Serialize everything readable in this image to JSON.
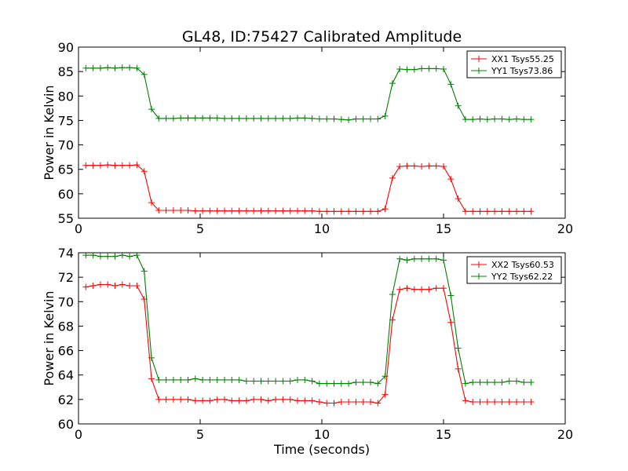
{
  "title": "GL48, ID:75427 Calibrated Amplitude",
  "xlabel": "Time (seconds)",
  "chart_data": [
    {
      "type": "line",
      "title": "GL48, ID:75427 Calibrated Amplitude",
      "xlabel": "",
      "ylabel": "Power in Kelvin",
      "xlim": [
        0,
        20
      ],
      "ylim": [
        55,
        90
      ],
      "xticks": [
        "0",
        "5",
        "10",
        "15",
        "20"
      ],
      "yticks": [
        "55",
        "60",
        "65",
        "70",
        "75",
        "80",
        "85",
        "90"
      ],
      "grid": false,
      "legend_position": "top-right",
      "series": [
        {
          "name": "XX1 Tsys55.25",
          "color": "#ff0000",
          "x": [
            0.3,
            0.6,
            0.9,
            1.2,
            1.5,
            1.8,
            2.1,
            2.4,
            2.7,
            3.0,
            3.3,
            3.6,
            3.9,
            4.2,
            4.5,
            4.8,
            5.1,
            5.4,
            5.7,
            6.0,
            6.3,
            6.6,
            6.9,
            7.2,
            7.5,
            7.8,
            8.1,
            8.4,
            8.7,
            9.0,
            9.3,
            9.6,
            9.9,
            10.2,
            10.5,
            10.8,
            11.1,
            11.4,
            11.7,
            12.0,
            12.3,
            12.6,
            12.9,
            13.2,
            13.5,
            13.8,
            14.1,
            14.4,
            14.7,
            15.0,
            15.3,
            15.6,
            15.9,
            16.2,
            16.5,
            16.8,
            17.1,
            17.4,
            17.7,
            18.0,
            18.3,
            18.6
          ],
          "y": [
            65.8,
            65.8,
            65.8,
            65.9,
            65.8,
            65.8,
            65.8,
            65.9,
            64.6,
            58.2,
            56.6,
            56.6,
            56.6,
            56.6,
            56.6,
            56.5,
            56.5,
            56.5,
            56.5,
            56.5,
            56.5,
            56.5,
            56.5,
            56.5,
            56.5,
            56.5,
            56.5,
            56.5,
            56.5,
            56.5,
            56.5,
            56.5,
            56.4,
            56.4,
            56.4,
            56.4,
            56.4,
            56.4,
            56.4,
            56.4,
            56.4,
            56.9,
            63.2,
            65.6,
            65.7,
            65.7,
            65.6,
            65.7,
            65.7,
            65.6,
            63.0,
            59.0,
            56.4,
            56.4,
            56.4,
            56.4,
            56.4,
            56.4,
            56.4,
            56.4,
            56.4,
            56.4
          ]
        },
        {
          "name": "YY1 Tsys73.86",
          "color": "#008000",
          "x": [
            0.3,
            0.6,
            0.9,
            1.2,
            1.5,
            1.8,
            2.1,
            2.4,
            2.7,
            3.0,
            3.3,
            3.6,
            3.9,
            4.2,
            4.5,
            4.8,
            5.1,
            5.4,
            5.7,
            6.0,
            6.3,
            6.6,
            6.9,
            7.2,
            7.5,
            7.8,
            8.1,
            8.4,
            8.7,
            9.0,
            9.3,
            9.6,
            9.9,
            10.2,
            10.5,
            10.8,
            11.1,
            11.4,
            11.7,
            12.0,
            12.3,
            12.6,
            12.9,
            13.2,
            13.5,
            13.8,
            14.1,
            14.4,
            14.7,
            15.0,
            15.3,
            15.6,
            15.9,
            16.2,
            16.5,
            16.8,
            17.1,
            17.4,
            17.7,
            18.0,
            18.3,
            18.6
          ],
          "y": [
            85.7,
            85.7,
            85.7,
            85.8,
            85.7,
            85.8,
            85.8,
            85.7,
            84.4,
            77.3,
            75.4,
            75.4,
            75.4,
            75.5,
            75.5,
            75.5,
            75.5,
            75.5,
            75.5,
            75.4,
            75.4,
            75.4,
            75.4,
            75.4,
            75.4,
            75.4,
            75.4,
            75.4,
            75.4,
            75.5,
            75.5,
            75.4,
            75.3,
            75.3,
            75.3,
            75.2,
            75.1,
            75.3,
            75.3,
            75.3,
            75.3,
            75.9,
            82.6,
            85.5,
            85.4,
            85.4,
            85.6,
            85.6,
            85.6,
            85.5,
            82.4,
            78.0,
            75.2,
            75.2,
            75.3,
            75.2,
            75.3,
            75.3,
            75.2,
            75.3,
            75.2,
            75.2
          ]
        }
      ]
    },
    {
      "type": "line",
      "title": "",
      "xlabel": "Time (seconds)",
      "ylabel": "Power in Kelvin",
      "xlim": [
        0,
        20
      ],
      "ylim": [
        60,
        74
      ],
      "xticks": [
        "0",
        "5",
        "10",
        "15",
        "20"
      ],
      "yticks": [
        "60",
        "62",
        "64",
        "66",
        "68",
        "70",
        "72",
        "74"
      ],
      "grid": false,
      "legend_position": "top-right",
      "series": [
        {
          "name": "XX2 Tsys60.53",
          "color": "#ff0000",
          "x": [
            0.3,
            0.6,
            0.9,
            1.2,
            1.5,
            1.8,
            2.1,
            2.4,
            2.7,
            3.0,
            3.3,
            3.6,
            3.9,
            4.2,
            4.5,
            4.8,
            5.1,
            5.4,
            5.7,
            6.0,
            6.3,
            6.6,
            6.9,
            7.2,
            7.5,
            7.8,
            8.1,
            8.4,
            8.7,
            9.0,
            9.3,
            9.6,
            9.9,
            10.2,
            10.5,
            10.8,
            11.1,
            11.4,
            11.7,
            12.0,
            12.3,
            12.6,
            12.9,
            13.2,
            13.5,
            13.8,
            14.1,
            14.4,
            14.7,
            15.0,
            15.3,
            15.6,
            15.9,
            16.2,
            16.5,
            16.8,
            17.1,
            17.4,
            17.7,
            18.0,
            18.3,
            18.6
          ],
          "y": [
            71.2,
            71.3,
            71.4,
            71.4,
            71.3,
            71.4,
            71.3,
            71.3,
            70.2,
            63.7,
            62.0,
            62.0,
            62.0,
            62.0,
            62.0,
            61.9,
            61.9,
            61.9,
            62.0,
            62.0,
            61.9,
            61.9,
            61.9,
            62.0,
            62.0,
            61.9,
            62.0,
            62.0,
            62.0,
            61.9,
            61.9,
            61.9,
            61.8,
            61.7,
            61.7,
            61.8,
            61.8,
            61.8,
            61.8,
            61.8,
            61.7,
            62.4,
            68.5,
            71.0,
            71.1,
            71.0,
            71.0,
            71.0,
            71.1,
            71.1,
            68.3,
            64.5,
            61.9,
            61.8,
            61.8,
            61.8,
            61.8,
            61.8,
            61.8,
            61.8,
            61.8,
            61.8
          ]
        },
        {
          "name": "YY2 Tsys62.22",
          "color": "#008000",
          "x": [
            0.3,
            0.6,
            0.9,
            1.2,
            1.5,
            1.8,
            2.1,
            2.4,
            2.7,
            3.0,
            3.3,
            3.6,
            3.9,
            4.2,
            4.5,
            4.8,
            5.1,
            5.4,
            5.7,
            6.0,
            6.3,
            6.6,
            6.9,
            7.2,
            7.5,
            7.8,
            8.1,
            8.4,
            8.7,
            9.0,
            9.3,
            9.6,
            9.9,
            10.2,
            10.5,
            10.8,
            11.1,
            11.4,
            11.7,
            12.0,
            12.3,
            12.6,
            12.9,
            13.2,
            13.5,
            13.8,
            14.1,
            14.4,
            14.7,
            15.0,
            15.3,
            15.6,
            15.9,
            16.2,
            16.5,
            16.8,
            17.1,
            17.4,
            17.7,
            18.0,
            18.3,
            18.6
          ],
          "y": [
            73.8,
            73.8,
            73.7,
            73.7,
            73.7,
            73.8,
            73.7,
            73.8,
            72.5,
            65.4,
            63.6,
            63.6,
            63.6,
            63.6,
            63.6,
            63.7,
            63.6,
            63.6,
            63.6,
            63.6,
            63.6,
            63.6,
            63.5,
            63.5,
            63.5,
            63.5,
            63.5,
            63.5,
            63.5,
            63.6,
            63.6,
            63.5,
            63.3,
            63.3,
            63.3,
            63.3,
            63.3,
            63.4,
            63.4,
            63.4,
            63.3,
            63.9,
            70.6,
            73.5,
            73.4,
            73.5,
            73.5,
            73.5,
            73.5,
            73.4,
            70.5,
            66.2,
            63.3,
            63.4,
            63.4,
            63.4,
            63.4,
            63.4,
            63.5,
            63.5,
            63.4,
            63.4
          ]
        }
      ]
    }
  ]
}
